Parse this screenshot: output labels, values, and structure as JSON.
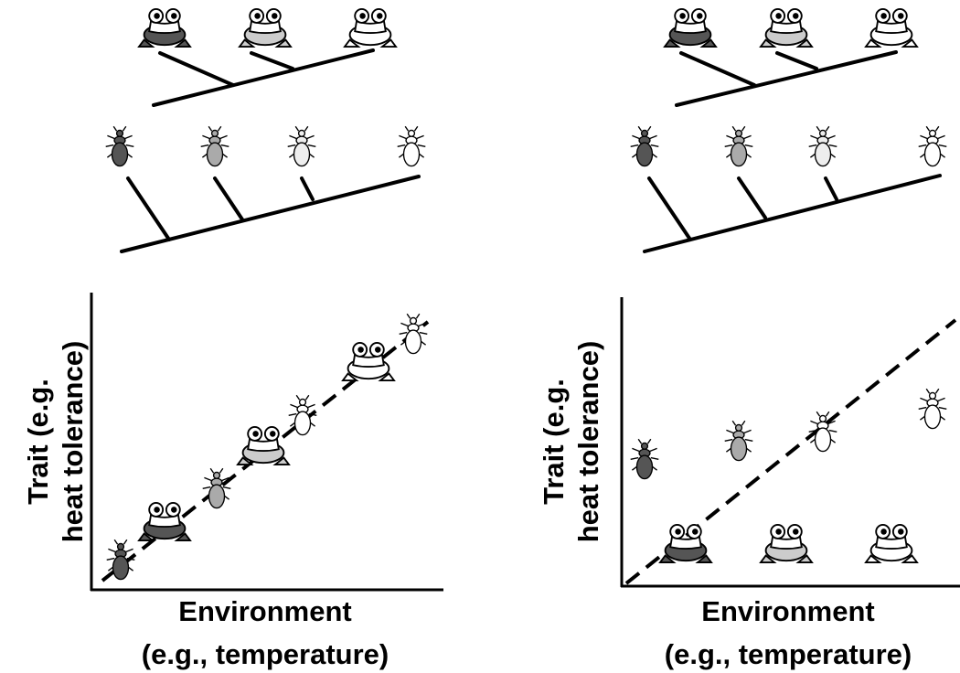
{
  "panels": [
    {
      "y_label": [
        "Trait (e.g.",
        "heat tolerance)"
      ],
      "x_label": [
        "Environment",
        "(e.g., temperature)"
      ]
    },
    {
      "y_label": [
        "Trait (e.g.",
        "heat tolerance)"
      ],
      "x_label": [
        "Environment",
        "(e.g., temperature)"
      ]
    }
  ]
}
